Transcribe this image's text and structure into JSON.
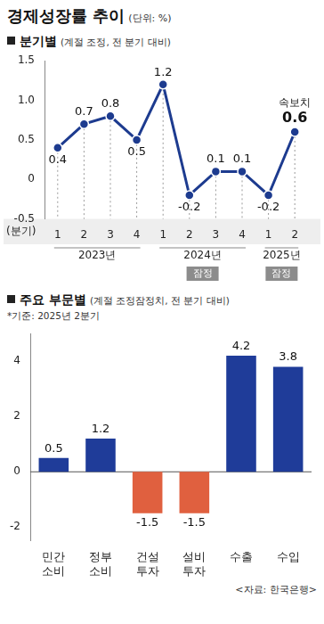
{
  "header": {
    "title": "경제성장률 추이",
    "unit": "(단위: %)"
  },
  "source": "<자료: 한국은행>",
  "chart_data": [
    {
      "type": "line",
      "title": "분기별",
      "subtitle": "(계절 조정, 전 분기 대비)",
      "x_label": "(분기)",
      "categories": [
        "1",
        "2",
        "3",
        "4",
        "1",
        "2",
        "3",
        "4",
        "1",
        "2"
      ],
      "groups": [
        {
          "label": "2023년",
          "count": 4
        },
        {
          "label": "2024년",
          "count": 4,
          "badge": "잠정"
        },
        {
          "label": "2025년",
          "count": 2,
          "badge": "잠정"
        }
      ],
      "values": [
        0.4,
        0.7,
        0.8,
        0.5,
        1.2,
        -0.2,
        0.1,
        0.1,
        -0.2,
        0.6
      ],
      "color": "#1d3b8f",
      "marker": "circle",
      "ylim": [
        -0.5,
        1.5
      ],
      "yticks": [
        -0.5,
        0,
        0.5,
        {
          "value": 1,
          "label": "1.0"
        },
        1.5
      ],
      "grid": false,
      "data_labels": true,
      "annotations": [
        {
          "text": "속보치",
          "index": 9
        }
      ]
    },
    {
      "type": "bar",
      "title": "주요 부문별",
      "subtitle": "(계절 조정잠정치, 전 분기 대비)",
      "note": "*기준: 2025년 2분기",
      "categories": [
        "민간 소비",
        "정부 소비",
        "건설 투자",
        "설비 투자",
        "수출",
        "수입"
      ],
      "values": [
        0.5,
        1.2,
        -1.5,
        -1.5,
        4.2,
        3.8
      ],
      "colors": [
        "#1f3c99",
        "#1f3c99",
        "#e0603f",
        "#e0603f",
        "#1f3c99",
        "#1f3c99"
      ],
      "ylim": [
        -2.5,
        5
      ],
      "yticks": [
        -2,
        0,
        2,
        4
      ],
      "grid": false,
      "data_labels": true
    }
  ]
}
